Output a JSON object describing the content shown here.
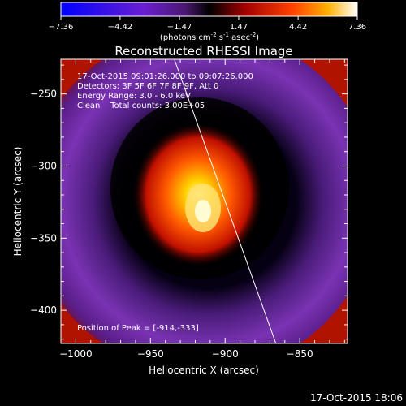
{
  "colorbar": {
    "ticks": [
      "-7.36",
      "-4.42",
      "-1.47",
      "1.47",
      "4.42",
      "7.36"
    ],
    "units_main": "(photons cm",
    "units_exp1": "-2",
    "units_mid": " s",
    "units_exp2": "-1",
    "units_end": " asec",
    "units_exp3": "-2",
    "units_close": ")"
  },
  "plot": {
    "title": "Reconstructed RHESSI Image",
    "info_lines": [
      "17-Oct-2015 09:01:26.000 to 09:07:26.000",
      "Detectors: 3F 5F 6F 7F 8F 9F, Att 0",
      "Energy Range: 3.0 - 6.0 keV",
      "Clean    Total counts: 3.00E+05"
    ],
    "peak_label": "Position of Peak = [-914,-333]"
  },
  "timestamp": "17-Oct-2015 18:06",
  "chart_data": {
    "type": "heatmap",
    "title": "Reconstructed RHESSI Image",
    "xlabel": "Heliocentric X (arcsec)",
    "ylabel": "Heliocentric Y (arcsec)",
    "xlim": [
      -1010,
      -818
    ],
    "ylim": [
      -423,
      -226
    ],
    "x_ticks": [
      -1000,
      -950,
      -900,
      -850
    ],
    "y_ticks": [
      -250,
      -300,
      -350,
      -400
    ],
    "colorbar_range": [
      -7.36,
      7.36
    ],
    "colormap": "hot-blue",
    "peak": [
      -914,
      -333
    ],
    "limb_line": [
      [
        -934,
        -226
      ],
      [
        -866,
        -423
      ]
    ],
    "colors": {
      "background": "#000000",
      "foreground": "#ffffff"
    }
  }
}
